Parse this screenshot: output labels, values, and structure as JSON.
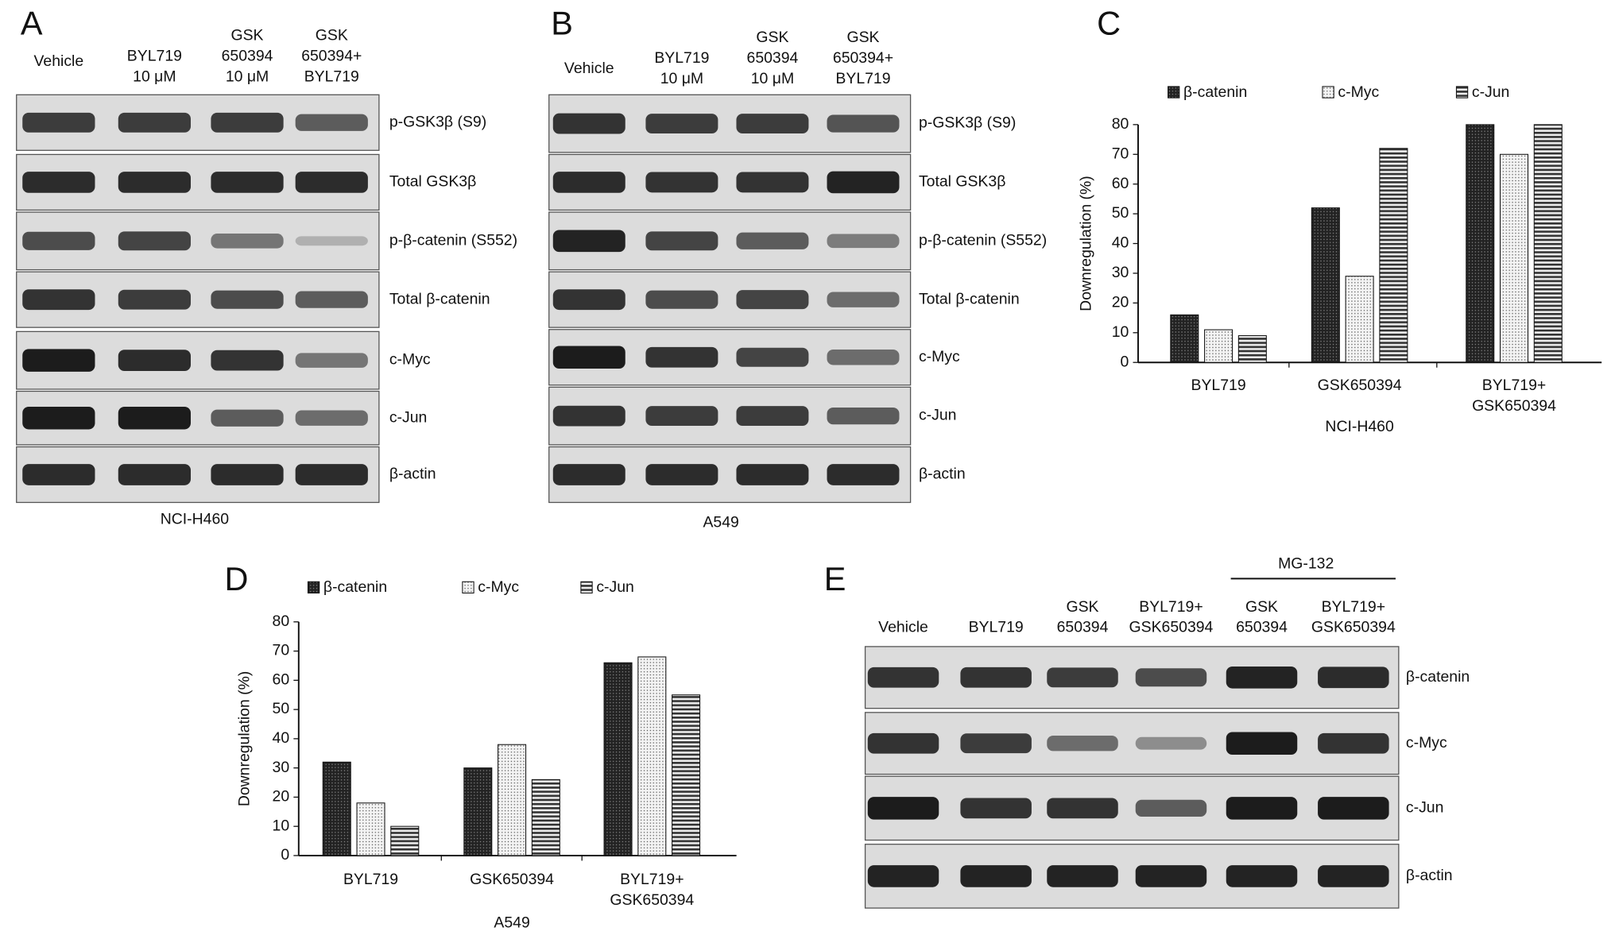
{
  "blots": [
    {
      "letter": "A",
      "lanes": [
        [
          "Vehicle"
        ],
        [
          "BYL719",
          "10 μM"
        ],
        [
          "GSK",
          "650394",
          "10 μM"
        ],
        [
          "GSK",
          "650394+",
          "BYL719"
        ]
      ],
      "rows": [
        "p-GSK3β (S9)",
        "Total GSK3β",
        "p-β-catenin (S552)",
        "Total β-catenin",
        "c-Myc",
        "c-Jun",
        "β-actin"
      ],
      "cell_line": "NCI-H460"
    },
    {
      "letter": "B",
      "lanes": [
        [
          "Vehicle"
        ],
        [
          "BYL719",
          "10 μM"
        ],
        [
          "GSK",
          "650394",
          "10 μM"
        ],
        [
          "GSK",
          "650394+",
          "BYL719"
        ]
      ],
      "rows": [
        "p-GSK3β (S9)",
        "Total GSK3β",
        "p-β-catenin (S552)",
        "Total β-catenin",
        "c-Myc",
        "c-Jun",
        "β-actin"
      ],
      "cell_line": "A549"
    },
    {
      "letter": "E",
      "lanes": [
        [
          "Vehicle"
        ],
        [
          "BYL719"
        ],
        [
          "GSK",
          "650394"
        ],
        [
          "BYL719+",
          "GSK650394"
        ],
        [
          "GSK",
          "650394"
        ],
        [
          "BYL719+",
          "GSK650394"
        ]
      ],
      "group": "MG-132",
      "rows": [
        "β-catenin",
        "c-Myc",
        "c-Jun",
        "β-actin"
      ]
    }
  ],
  "chart_data": [
    {
      "type": "bar",
      "letter": "C",
      "categories": [
        [
          "BYL719"
        ],
        [
          "GSK650394"
        ],
        [
          "BYL719+",
          "GSK650394"
        ]
      ],
      "series": [
        {
          "name": "β-catenin",
          "color": "#222222",
          "values": [
            16,
            52,
            80
          ]
        },
        {
          "name": "c-Myc",
          "color": "#555555",
          "values": [
            11,
            29,
            70
          ]
        },
        {
          "name": "c-Jun",
          "color": "#333333",
          "values": [
            9,
            72,
            80
          ]
        }
      ],
      "ylim": [
        0,
        80
      ],
      "yticks": [
        0,
        10,
        20,
        30,
        40,
        50,
        60,
        70,
        80
      ],
      "y_label": "Downregulation (%)",
      "x_label": "NCI-H460"
    },
    {
      "type": "bar",
      "letter": "D",
      "categories": [
        [
          "BYL719"
        ],
        [
          "GSK650394"
        ],
        [
          "BYL719+",
          "GSK650394"
        ]
      ],
      "series": [
        {
          "name": "β-catenin",
          "color": "#222222",
          "values": [
            32,
            30,
            66
          ]
        },
        {
          "name": "c-Myc",
          "color": "#555555",
          "values": [
            18,
            38,
            68
          ]
        },
        {
          "name": "c-Jun",
          "color": "#333333",
          "values": [
            10,
            26,
            55
          ]
        }
      ],
      "ylim": [
        0,
        80
      ],
      "yticks": [
        0,
        10,
        20,
        30,
        40,
        50,
        60,
        70,
        80
      ],
      "y_label": "Downregulation (%)",
      "x_label": "A549"
    }
  ]
}
